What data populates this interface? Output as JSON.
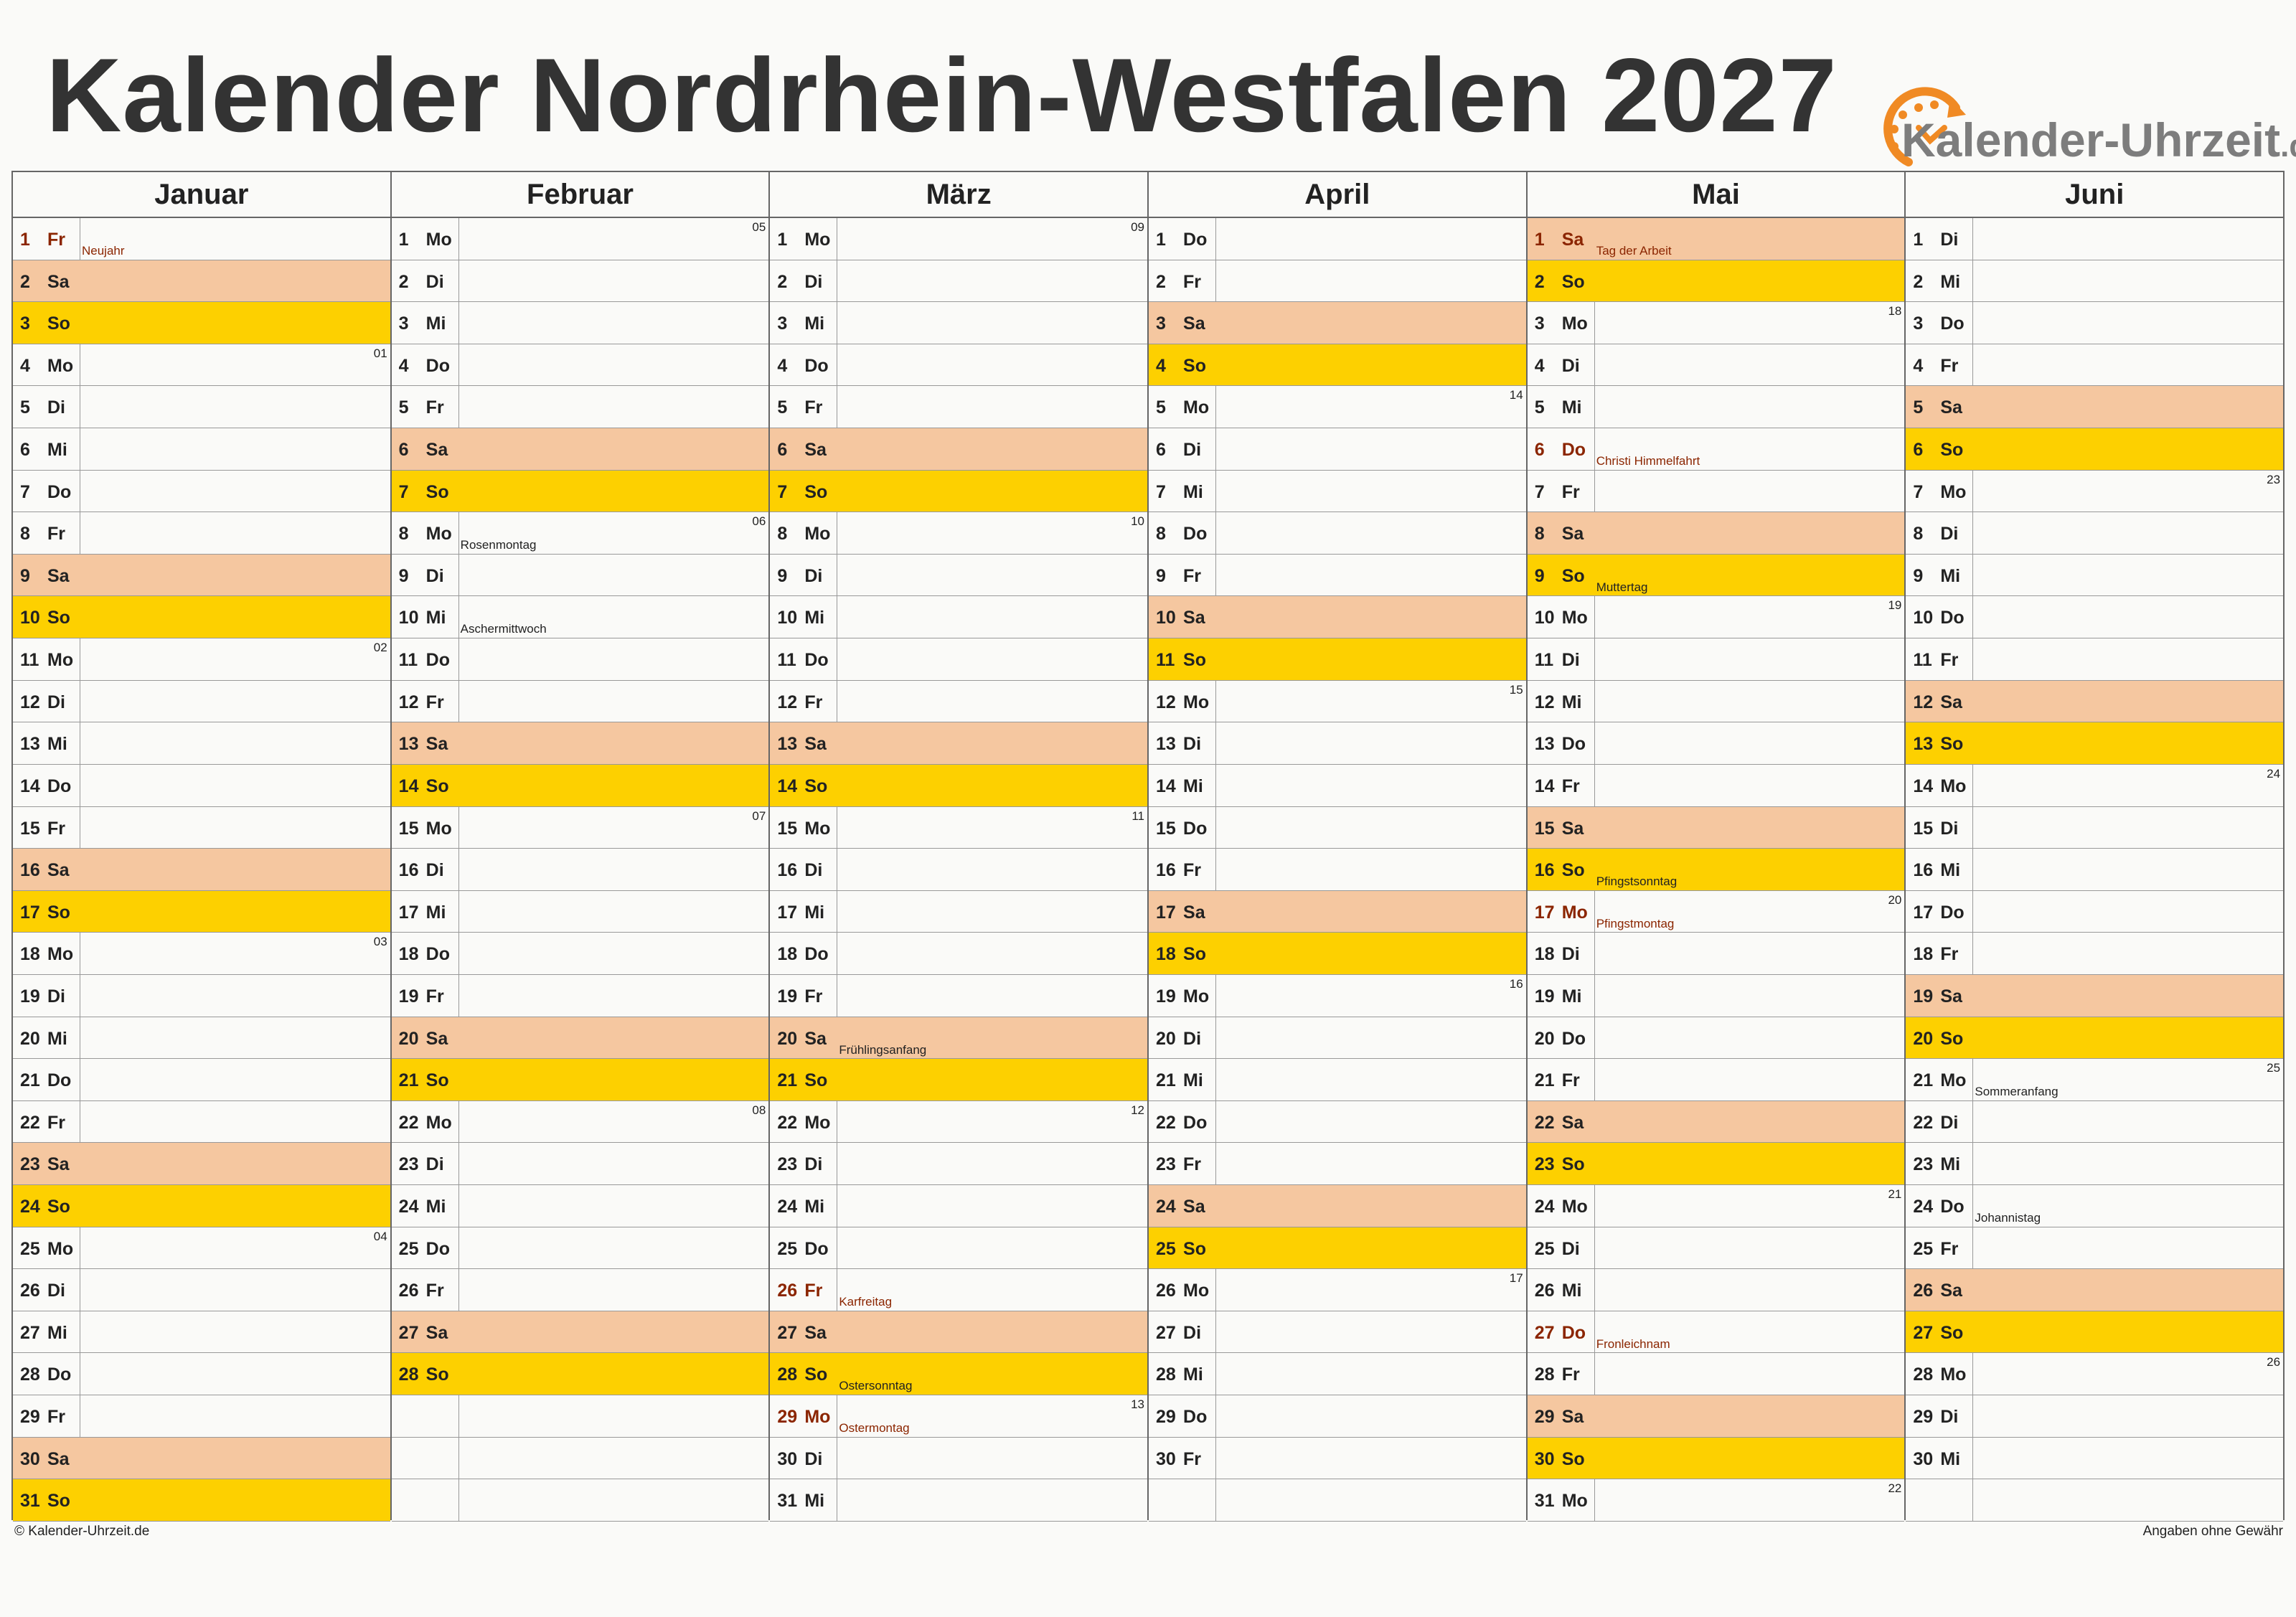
{
  "title": "Kalender Nordrhein-Westfalen 2027",
  "logo": {
    "name": "Kalender-Uhrzeit",
    "tld": ".de"
  },
  "footer": {
    "left": "© Kalender-Uhrzeit.de",
    "right": "Angaben ohne Gewähr"
  },
  "colors": {
    "saturday": "#f5c7a0",
    "sunday": "#fdd000",
    "holiday_text": "#8b2500"
  },
  "months": [
    {
      "name": "Januar",
      "first_weekday": 5,
      "days_in_month": 31,
      "week_numbers": {
        "4": "01",
        "11": "02",
        "18": "03",
        "25": "04"
      },
      "holidays": {
        "1": "Neujahr"
      },
      "notes": {}
    },
    {
      "name": "Februar",
      "first_weekday": 1,
      "days_in_month": 28,
      "week_numbers": {
        "1": "05",
        "8": "06",
        "15": "07",
        "22": "08"
      },
      "holidays": {},
      "notes": {
        "8": "Rosenmontag",
        "10": "Aschermittwoch"
      }
    },
    {
      "name": "März",
      "first_weekday": 1,
      "days_in_month": 31,
      "week_numbers": {
        "1": "09",
        "8": "10",
        "15": "11",
        "22": "12",
        "29": "13"
      },
      "holidays": {
        "26": "Karfreitag",
        "29": "Ostermontag"
      },
      "notes": {
        "20": "Frühlingsanfang",
        "28": "Ostersonntag"
      }
    },
    {
      "name": "April",
      "first_weekday": 4,
      "days_in_month": 30,
      "week_numbers": {
        "5": "14",
        "12": "15",
        "19": "16",
        "26": "17"
      },
      "holidays": {},
      "notes": {}
    },
    {
      "name": "Mai",
      "first_weekday": 6,
      "days_in_month": 31,
      "week_numbers": {
        "3": "18",
        "10": "19",
        "17": "20",
        "24": "21",
        "31": "22"
      },
      "holidays": {
        "1": "Tag der Arbeit",
        "6": "Christi Himmelfahrt",
        "17": "Pfingstmontag",
        "27": "Fronleichnam"
      },
      "notes": {
        "9": "Muttertag",
        "16": "Pfingstsonntag"
      }
    },
    {
      "name": "Juni",
      "first_weekday": 2,
      "days_in_month": 30,
      "week_numbers": {
        "7": "23",
        "14": "24",
        "21": "25",
        "28": "26"
      },
      "holidays": {},
      "notes": {
        "21": "Sommeranfang",
        "24": "Johannistag"
      }
    }
  ],
  "weekday_abbr": [
    "Mo",
    "Di",
    "Mi",
    "Do",
    "Fr",
    "Sa",
    "So"
  ]
}
